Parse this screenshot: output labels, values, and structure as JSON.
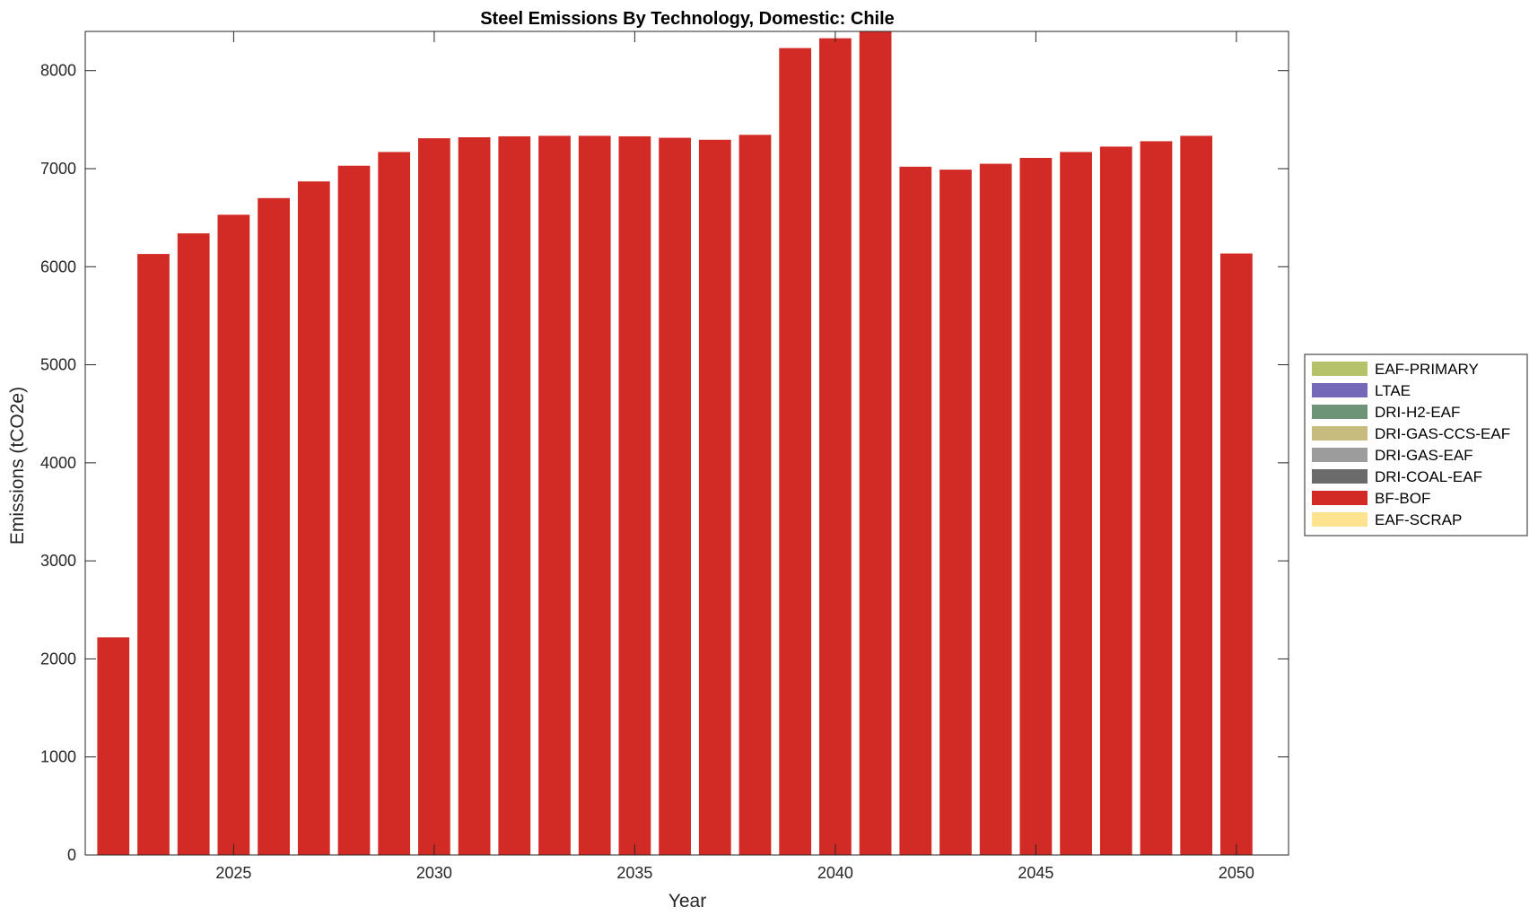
{
  "chart_data": {
    "type": "bar",
    "stacked": true,
    "title": "Steel Emissions By Technology, Domestic: Chile",
    "xlabel": "Year",
    "ylabel": "Emissions (tCO2e)",
    "xlim": [
      2021.3,
      2051.3
    ],
    "ylim": [
      0,
      8400
    ],
    "xticks": [
      2025,
      2030,
      2035,
      2040,
      2045,
      2050
    ],
    "yticks": [
      0,
      1000,
      2000,
      3000,
      4000,
      5000,
      6000,
      7000,
      8000
    ],
    "grid": false,
    "legend_position": "outside-right",
    "categories": [
      2022,
      2023,
      2024,
      2025,
      2026,
      2027,
      2028,
      2029,
      2030,
      2031,
      2032,
      2033,
      2034,
      2035,
      2036,
      2037,
      2038,
      2039,
      2040,
      2041,
      2042,
      2043,
      2044,
      2045,
      2046,
      2047,
      2048,
      2049,
      2050
    ],
    "series": [
      {
        "name": "EAF-PRIMARY",
        "color": "#b5c26a",
        "values": [
          0,
          0,
          0,
          0,
          0,
          0,
          0,
          0,
          0,
          0,
          0,
          0,
          0,
          0,
          0,
          0,
          0,
          0,
          0,
          0,
          0,
          0,
          0,
          0,
          0,
          0,
          0,
          0,
          0
        ]
      },
      {
        "name": "LTAE",
        "color": "#7469b8",
        "values": [
          0,
          0,
          0,
          0,
          0,
          0,
          0,
          0,
          0,
          0,
          0,
          0,
          0,
          0,
          0,
          0,
          0,
          0,
          0,
          0,
          0,
          0,
          0,
          0,
          0,
          0,
          0,
          0,
          0
        ]
      },
      {
        "name": "DRI-H2-EAF",
        "color": "#6e9478",
        "values": [
          0,
          0,
          0,
          0,
          0,
          0,
          0,
          0,
          0,
          0,
          0,
          0,
          0,
          0,
          0,
          0,
          0,
          0,
          0,
          0,
          0,
          0,
          0,
          0,
          0,
          0,
          0,
          0,
          0
        ]
      },
      {
        "name": "DRI-GAS-CCS-EAF",
        "color": "#c7bc7e",
        "values": [
          0,
          0,
          0,
          0,
          0,
          0,
          0,
          0,
          0,
          0,
          0,
          0,
          0,
          0,
          0,
          0,
          0,
          0,
          0,
          0,
          0,
          0,
          0,
          0,
          0,
          0,
          0,
          0,
          0
        ]
      },
      {
        "name": "DRI-GAS-EAF",
        "color": "#9c9c9c",
        "values": [
          0,
          0,
          0,
          0,
          0,
          0,
          0,
          0,
          0,
          0,
          0,
          0,
          0,
          0,
          0,
          0,
          0,
          0,
          0,
          0,
          0,
          0,
          0,
          0,
          0,
          0,
          0,
          0,
          0
        ]
      },
      {
        "name": "DRI-COAL-EAF",
        "color": "#6b6b6b",
        "values": [
          0,
          0,
          0,
          0,
          0,
          0,
          0,
          0,
          0,
          0,
          0,
          0,
          0,
          0,
          0,
          0,
          0,
          0,
          0,
          0,
          0,
          0,
          0,
          0,
          0,
          0,
          0,
          0,
          0
        ]
      },
      {
        "name": "BF-BOF",
        "color": "#d22b25",
        "values": [
          2220,
          6130,
          6340,
          6530,
          6700,
          6870,
          7030,
          7170,
          7310,
          7320,
          7330,
          7335,
          7335,
          7330,
          7315,
          7295,
          7345,
          8230,
          8330,
          8400,
          7020,
          6990,
          7050,
          7110,
          7170,
          7225,
          7280,
          7335,
          6135
        ]
      },
      {
        "name": "EAF-SCRAP",
        "color": "#fde390",
        "values": [
          0,
          0,
          0,
          0,
          0,
          0,
          0,
          0,
          0,
          0,
          0,
          0,
          0,
          0,
          0,
          0,
          0,
          0,
          0,
          0,
          0,
          0,
          0,
          0,
          0,
          0,
          0,
          0,
          0
        ]
      }
    ]
  }
}
